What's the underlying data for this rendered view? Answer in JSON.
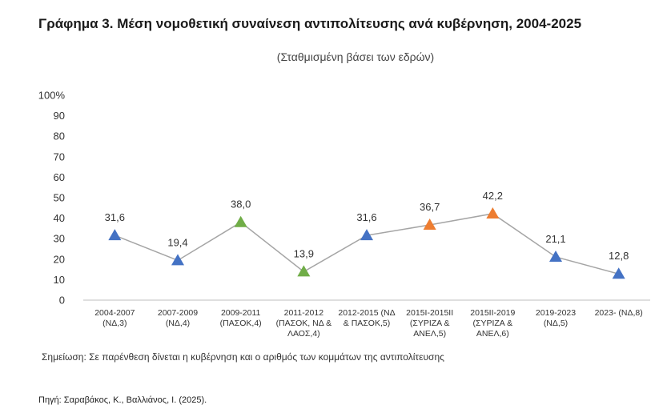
{
  "title": "Γράφημα 3. Μέση νομοθετική συναίνεση αντιπολίτευσης ανά κυβέρνηση, 2004-2025",
  "subtitle": "(Σταθμισμένη βάσει των εδρών)",
  "note": "Σημείωση: Σε παρένθεση δίνεται η κυβέρνηση και ο αριθμός των κομμάτων της αντιπολίτευσης",
  "source": "Πηγή: Σαραβάκος, Κ., Βαλλιάνος, Ι. (2025).",
  "colors": {
    "blue": "#4472c4",
    "green": "#70ad47",
    "orange": "#ed7d31",
    "line": "#a5a5a5"
  },
  "chart_data": {
    "type": "line",
    "title": "",
    "xlabel": "",
    "ylabel": "",
    "ylim": [
      0,
      100
    ],
    "yticks": [
      "0",
      "10",
      "20",
      "30",
      "40",
      "50",
      "60",
      "70",
      "80",
      "90",
      "100%"
    ],
    "categories": [
      [
        "2004-2007",
        "(ΝΔ,3)"
      ],
      [
        "2007-2009",
        "(ΝΔ,4)"
      ],
      [
        "2009-2011",
        "(ΠΑΣΟΚ,4)"
      ],
      [
        "2011-2012",
        "(ΠΑΣΟΚ, ΝΔ &",
        "ΛΑΟΣ,4)"
      ],
      [
        "2012-2015 (ΝΔ",
        "& ΠΑΣΟΚ,5)"
      ],
      [
        "2015Ι-2015ΙΙ",
        "(ΣΥΡΙΖΑ &",
        "ΑΝΕΛ,5)"
      ],
      [
        "2015ΙΙ-2019",
        "(ΣΥΡΙΖΑ &",
        "ΑΝΕΛ,6)"
      ],
      [
        "2019-2023",
        "(ΝΔ,5)"
      ],
      [
        "2023- (ΝΔ,8)"
      ]
    ],
    "values": [
      31.6,
      19.4,
      38.0,
      13.9,
      31.6,
      36.7,
      42.2,
      21.1,
      12.8
    ],
    "data_labels": [
      "31,6",
      "19,4",
      "38,0",
      "13,9",
      "31,6",
      "36,7",
      "42,2",
      "21,1",
      "12,8"
    ],
    "marker_colors": [
      "blue",
      "blue",
      "green",
      "green",
      "blue",
      "orange",
      "orange",
      "blue",
      "blue"
    ],
    "grid": false,
    "marker": "triangle"
  }
}
